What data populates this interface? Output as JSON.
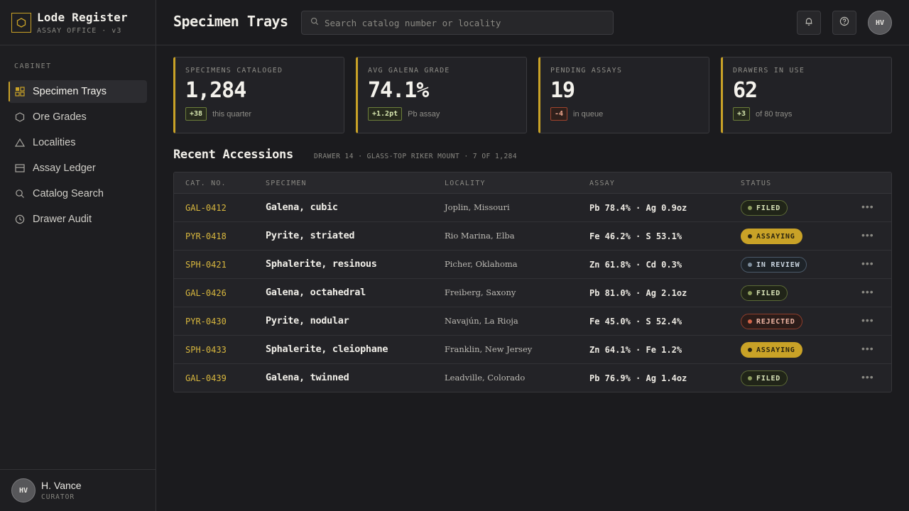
{
  "brand": {
    "title": "Lode Register",
    "subtitle": "ASSAY OFFICE · v3",
    "logo_icon": "hexagon-icon"
  },
  "sidebar": {
    "section_label": "CABINET",
    "items": [
      {
        "label": "Specimen Trays",
        "icon": "grid-icon",
        "active": true
      },
      {
        "label": "Ore Grades",
        "icon": "hexagon-icon"
      },
      {
        "label": "Localities",
        "icon": "triangle-icon"
      },
      {
        "label": "Assay Ledger",
        "icon": "ledger-icon"
      },
      {
        "label": "Catalog Search",
        "icon": "search-icon"
      },
      {
        "label": "Drawer Audit",
        "icon": "clock-icon"
      }
    ]
  },
  "user": {
    "initials": "HV",
    "name": "H. Vance",
    "role": "CURATOR"
  },
  "header": {
    "title": "Specimen Trays",
    "search_placeholder": "Search catalog number or locality",
    "avatar_initials": "HV"
  },
  "stats": [
    {
      "label": "SPECIMENS CATALOGED",
      "value": "1,284",
      "delta": "+38",
      "delta_dir": "up",
      "note": "this quarter"
    },
    {
      "label": "AVG GALENA GRADE",
      "value": "74.1%",
      "delta": "+1.2pt",
      "delta_dir": "up",
      "note": "Pb assay"
    },
    {
      "label": "PENDING ASSAYS",
      "value": "19",
      "delta": "-4",
      "delta_dir": "down",
      "note": "in queue"
    },
    {
      "label": "DRAWERS IN USE",
      "value": "62",
      "delta": "+3",
      "delta_dir": "up",
      "note": "of 80 trays"
    }
  ],
  "section": {
    "title": "Recent Accessions",
    "meta": "DRAWER 14 · GLASS-TOP RIKER MOUNT · 7 OF 1,284"
  },
  "table": {
    "columns": [
      "CAT. NO.",
      "SPECIMEN",
      "LOCALITY",
      "ASSAY",
      "STATUS"
    ],
    "rows": [
      {
        "cat": "GAL-0412",
        "specimen": "Galena, cubic",
        "locality": "Joplin, Missouri",
        "assay": "Pb 78.4% · Ag 0.9oz",
        "status": "FILED"
      },
      {
        "cat": "PYR-0418",
        "specimen": "Pyrite, striated",
        "locality": "Rio Marina, Elba",
        "assay": "Fe 46.2% · S 53.1%",
        "status": "ASSAYING"
      },
      {
        "cat": "SPH-0421",
        "specimen": "Sphalerite, resinous",
        "locality": "Picher, Oklahoma",
        "assay": "Zn 61.8% · Cd 0.3%",
        "status": "IN REVIEW"
      },
      {
        "cat": "GAL-0426",
        "specimen": "Galena, octahedral",
        "locality": "Freiberg, Saxony",
        "assay": "Pb 81.0% · Ag 2.1oz",
        "status": "FILED"
      },
      {
        "cat": "PYR-0430",
        "specimen": "Pyrite, nodular",
        "locality": "Navajún, La Rioja",
        "assay": "Fe 45.0% · S 52.4%",
        "status": "REJECTED"
      },
      {
        "cat": "SPH-0433",
        "specimen": "Sphalerite, cleiophane",
        "locality": "Franklin, New Jersey",
        "assay": "Zn 64.1% · Fe 1.2%",
        "status": "ASSAYING"
      },
      {
        "cat": "GAL-0439",
        "specimen": "Galena, twinned",
        "locality": "Leadville, Colorado",
        "assay": "Pb 76.9% · Ag 1.4oz",
        "status": "FILED"
      }
    ],
    "row_action_icon": "more-horizontal-icon"
  },
  "colors": {
    "accent": "#c9a227",
    "background": "#1b1b1e",
    "panel": "#232327"
  }
}
